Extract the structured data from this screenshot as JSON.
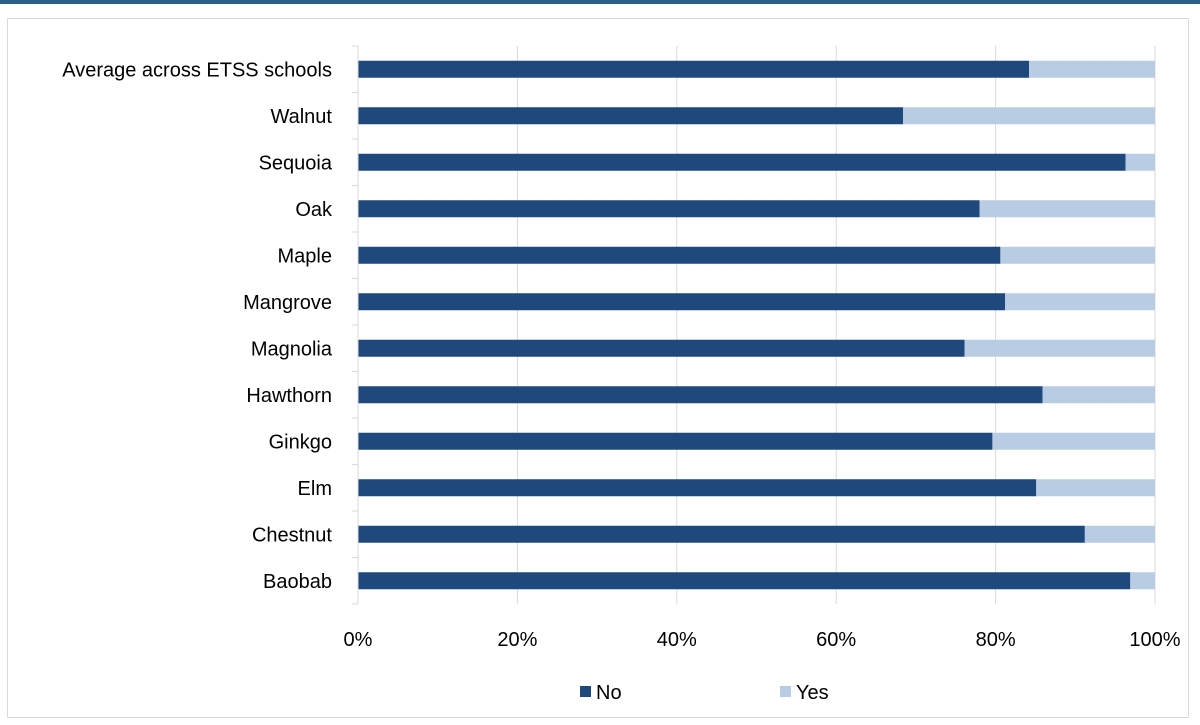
{
  "chart_data": {
    "type": "bar",
    "orientation": "horizontal",
    "stacked": true,
    "percent_stacked": true,
    "title": "",
    "xlabel": "",
    "ylabel": "",
    "xlim": [
      0,
      100
    ],
    "x_ticks": [
      "0%",
      "20%",
      "40%",
      "60%",
      "80%",
      "100%"
    ],
    "grid": "vertical",
    "legend_position": "bottom",
    "categories": [
      "Average across ETSS schools",
      "Walnut",
      "Sequoia",
      "Oak",
      "Maple",
      "Mangrove",
      "Magnolia",
      "Hawthorn",
      "Ginkgo",
      "Elm",
      "Chestnut",
      "Baobab"
    ],
    "series": [
      {
        "name": "No",
        "color": "#1f497d",
        "values": [
          84.2,
          68.4,
          96.3,
          78.0,
          80.6,
          81.2,
          76.1,
          85.9,
          79.6,
          85.1,
          91.2,
          96.9
        ]
      },
      {
        "name": "Yes",
        "color": "#b8cce4",
        "values": [
          15.8,
          31.6,
          3.7,
          22.0,
          19.4,
          18.8,
          23.9,
          14.1,
          20.4,
          14.9,
          8.8,
          3.1
        ]
      }
    ]
  }
}
